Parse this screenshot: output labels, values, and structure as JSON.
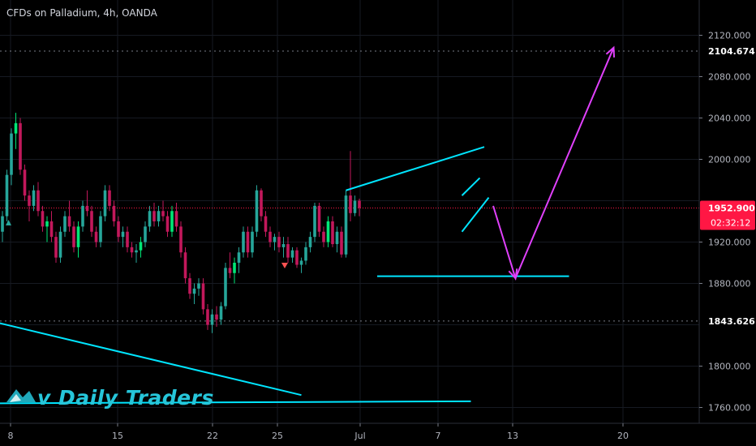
{
  "chart_data": {
    "type": "candlestick",
    "title": "CFDs on Palladium, 4h, OANDA",
    "symbol": "CFDs on Palladium",
    "interval": "4h",
    "source": "OANDA",
    "ylim": [
      1744,
      2175
    ],
    "y_ticks": [
      1760,
      1800,
      1840,
      1880,
      1920,
      1960,
      2000,
      2040,
      2080,
      2120
    ],
    "y_tick_labels": [
      "1760.000",
      "1800.000",
      "1880.000",
      "1920.000",
      "2000.000",
      "2040.000",
      "2080.000",
      "2120.000"
    ],
    "x_tick_labels": [
      "8",
      "15",
      "22",
      "25",
      "Jul",
      "7",
      "13",
      "20"
    ],
    "last_price": "1952.900",
    "countdown": "02:32:12",
    "marked_levels": [
      "2104.674",
      "1843.626"
    ],
    "watermark": "v Daily Traders",
    "colors": {
      "up": "#26a69a",
      "up_bright": "#00e676",
      "down": "#c2185b",
      "trendline": "#00e5ff",
      "projection": "#e040fb",
      "price_label": "#ff1744"
    },
    "grid": true,
    "candles": [
      {
        "o": 1930,
        "h": 1950,
        "l": 1920,
        "c": 1945
      },
      {
        "o": 1945,
        "h": 1990,
        "l": 1940,
        "c": 1985
      },
      {
        "o": 1985,
        "h": 2030,
        "l": 1975,
        "c": 2025
      },
      {
        "o": 2025,
        "h": 2045,
        "l": 2010,
        "c": 2035
      },
      {
        "o": 2035,
        "h": 2040,
        "l": 1985,
        "c": 1990
      },
      {
        "o": 1990,
        "h": 1995,
        "l": 1960,
        "c": 1965
      },
      {
        "o": 1965,
        "h": 1970,
        "l": 1940,
        "c": 1955
      },
      {
        "o": 1955,
        "h": 1975,
        "l": 1950,
        "c": 1970
      },
      {
        "o": 1970,
        "h": 1978,
        "l": 1945,
        "c": 1950
      },
      {
        "o": 1950,
        "h": 1955,
        "l": 1930,
        "c": 1935
      },
      {
        "o": 1935,
        "h": 1945,
        "l": 1920,
        "c": 1940
      },
      {
        "o": 1940,
        "h": 1950,
        "l": 1920,
        "c": 1925
      },
      {
        "o": 1925,
        "h": 1930,
        "l": 1900,
        "c": 1905
      },
      {
        "o": 1905,
        "h": 1935,
        "l": 1900,
        "c": 1930
      },
      {
        "o": 1930,
        "h": 1950,
        "l": 1925,
        "c": 1945
      },
      {
        "o": 1945,
        "h": 1960,
        "l": 1930,
        "c": 1935
      },
      {
        "o": 1935,
        "h": 1940,
        "l": 1910,
        "c": 1915
      },
      {
        "o": 1915,
        "h": 1940,
        "l": 1905,
        "c": 1935
      },
      {
        "o": 1935,
        "h": 1960,
        "l": 1930,
        "c": 1955
      },
      {
        "o": 1955,
        "h": 1970,
        "l": 1945,
        "c": 1950
      },
      {
        "o": 1950,
        "h": 1955,
        "l": 1925,
        "c": 1930
      },
      {
        "o": 1930,
        "h": 1935,
        "l": 1915,
        "c": 1920
      },
      {
        "o": 1920,
        "h": 1950,
        "l": 1915,
        "c": 1945
      },
      {
        "o": 1945,
        "h": 1975,
        "l": 1940,
        "c": 1970
      },
      {
        "o": 1970,
        "h": 1975,
        "l": 1950,
        "c": 1955
      },
      {
        "o": 1955,
        "h": 1960,
        "l": 1935,
        "c": 1940
      },
      {
        "o": 1940,
        "h": 1945,
        "l": 1920,
        "c": 1925
      },
      {
        "o": 1925,
        "h": 1935,
        "l": 1915,
        "c": 1930
      },
      {
        "o": 1930,
        "h": 1935,
        "l": 1910,
        "c": 1915
      },
      {
        "o": 1915,
        "h": 1920,
        "l": 1905,
        "c": 1910
      },
      {
        "o": 1910,
        "h": 1918,
        "l": 1900,
        "c": 1912
      },
      {
        "o": 1912,
        "h": 1925,
        "l": 1905,
        "c": 1920
      },
      {
        "o": 1920,
        "h": 1940,
        "l": 1915,
        "c": 1935
      },
      {
        "o": 1935,
        "h": 1955,
        "l": 1930,
        "c": 1950
      },
      {
        "o": 1950,
        "h": 1958,
        "l": 1935,
        "c": 1940
      },
      {
        "o": 1940,
        "h": 1955,
        "l": 1935,
        "c": 1950
      },
      {
        "o": 1950,
        "h": 1960,
        "l": 1940,
        "c": 1945
      },
      {
        "o": 1945,
        "h": 1950,
        "l": 1925,
        "c": 1930
      },
      {
        "o": 1930,
        "h": 1955,
        "l": 1925,
        "c": 1950
      },
      {
        "o": 1950,
        "h": 1958,
        "l": 1930,
        "c": 1935
      },
      {
        "o": 1935,
        "h": 1940,
        "l": 1905,
        "c": 1910
      },
      {
        "o": 1910,
        "h": 1915,
        "l": 1880,
        "c": 1885
      },
      {
        "o": 1885,
        "h": 1890,
        "l": 1865,
        "c": 1870
      },
      {
        "o": 1870,
        "h": 1880,
        "l": 1860,
        "c": 1875
      },
      {
        "o": 1875,
        "h": 1885,
        "l": 1868,
        "c": 1880
      },
      {
        "o": 1880,
        "h": 1885,
        "l": 1850,
        "c": 1855
      },
      {
        "o": 1855,
        "h": 1860,
        "l": 1835,
        "c": 1840
      },
      {
        "o": 1840,
        "h": 1855,
        "l": 1832,
        "c": 1850
      },
      {
        "o": 1850,
        "h": 1858,
        "l": 1838,
        "c": 1845
      },
      {
        "o": 1845,
        "h": 1862,
        "l": 1840,
        "c": 1858
      },
      {
        "o": 1858,
        "h": 1900,
        "l": 1855,
        "c": 1895
      },
      {
        "o": 1895,
        "h": 1910,
        "l": 1885,
        "c": 1890
      },
      {
        "o": 1890,
        "h": 1905,
        "l": 1880,
        "c": 1900
      },
      {
        "o": 1900,
        "h": 1915,
        "l": 1890,
        "c": 1910
      },
      {
        "o": 1910,
        "h": 1935,
        "l": 1905,
        "c": 1930
      },
      {
        "o": 1930,
        "h": 1935,
        "l": 1905,
        "c": 1910
      },
      {
        "o": 1910,
        "h": 1935,
        "l": 1905,
        "c": 1930
      },
      {
        "o": 1930,
        "h": 1975,
        "l": 1925,
        "c": 1970
      },
      {
        "o": 1970,
        "h": 1972,
        "l": 1940,
        "c": 1945
      },
      {
        "o": 1945,
        "h": 1950,
        "l": 1925,
        "c": 1930
      },
      {
        "o": 1930,
        "h": 1935,
        "l": 1915,
        "c": 1920
      },
      {
        "o": 1920,
        "h": 1928,
        "l": 1912,
        "c": 1925
      },
      {
        "o": 1925,
        "h": 1930,
        "l": 1910,
        "c": 1915
      },
      {
        "o": 1915,
        "h": 1925,
        "l": 1905,
        "c": 1918
      },
      {
        "o": 1918,
        "h": 1925,
        "l": 1900,
        "c": 1905
      },
      {
        "o": 1905,
        "h": 1915,
        "l": 1900,
        "c": 1912
      },
      {
        "o": 1912,
        "h": 1915,
        "l": 1895,
        "c": 1898
      },
      {
        "o": 1898,
        "h": 1905,
        "l": 1890,
        "c": 1902
      },
      {
        "o": 1902,
        "h": 1920,
        "l": 1898,
        "c": 1915
      },
      {
        "o": 1915,
        "h": 1930,
        "l": 1910,
        "c": 1925
      },
      {
        "o": 1925,
        "h": 1958,
        "l": 1920,
        "c": 1955
      },
      {
        "o": 1955,
        "h": 1958,
        "l": 1925,
        "c": 1930
      },
      {
        "o": 1930,
        "h": 1935,
        "l": 1915,
        "c": 1920
      },
      {
        "o": 1920,
        "h": 1945,
        "l": 1915,
        "c": 1940
      },
      {
        "o": 1940,
        "h": 1945,
        "l": 1915,
        "c": 1918
      },
      {
        "o": 1918,
        "h": 1935,
        "l": 1910,
        "c": 1930
      },
      {
        "o": 1930,
        "h": 1935,
        "l": 1905,
        "c": 1908
      },
      {
        "o": 1908,
        "h": 1970,
        "l": 1905,
        "c": 1965
      },
      {
        "o": 1965,
        "h": 2008,
        "l": 1940,
        "c": 1948
      },
      {
        "o": 1948,
        "h": 1965,
        "l": 1945,
        "c": 1960
      },
      {
        "o": 1960,
        "h": 1962,
        "l": 1945,
        "c": 1953
      }
    ],
    "trendlines": [
      {
        "name": "rising-wedge-top",
        "points": [
          [
            "c77",
            1970
          ],
          [
            "c108",
            2012
          ]
        ]
      },
      {
        "name": "support-line",
        "points": [
          [
            "c84",
            1887
          ],
          [
            "c127",
            1887
          ]
        ]
      },
      {
        "name": "flag-upper",
        "points": [
          [
            "c103",
            1965
          ],
          [
            "c107",
            1982
          ]
        ]
      },
      {
        "name": "flag-lower",
        "points": [
          [
            "c103",
            1930
          ],
          [
            "c109",
            1963
          ]
        ]
      },
      {
        "name": "lower-left-trendline",
        "points": [
          [
            "c-4",
            1845
          ],
          [
            "c67",
            1772
          ]
        ]
      },
      {
        "name": "bottom-horizontal",
        "points": [
          [
            "c-4",
            1764
          ],
          [
            "c105",
            1766
          ]
        ]
      }
    ],
    "projection": [
      [
        "c110",
        1955
      ],
      [
        "c115",
        1885
      ],
      [
        "c137",
        2108
      ]
    ]
  }
}
